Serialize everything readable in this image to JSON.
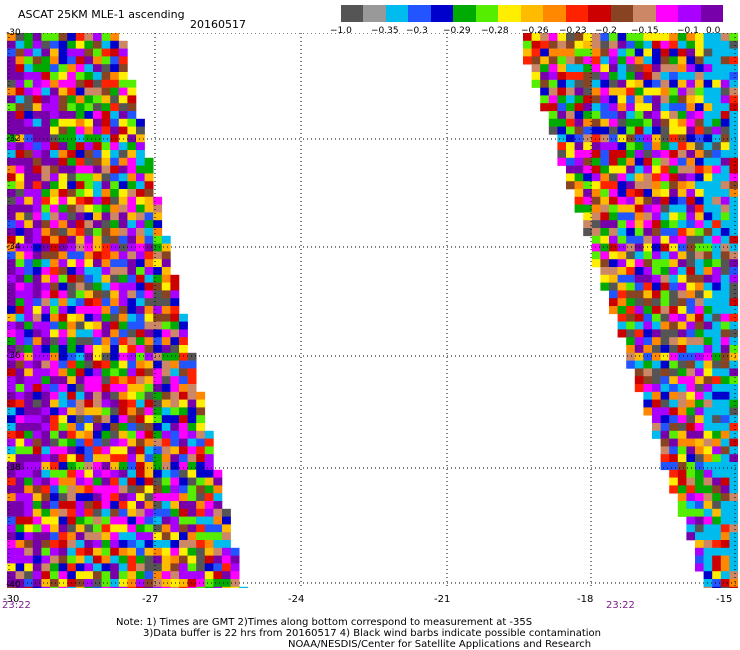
{
  "header": {
    "title": "ASCAT 25KM MLE-1 ascending",
    "date": "20160517"
  },
  "colorbar": {
    "colors": [
      "#555555",
      "#999999",
      "#00bbee",
      "#2255ff",
      "#0000cc",
      "#00aa00",
      "#55ee00",
      "#ffee00",
      "#ffbb00",
      "#ff8800",
      "#ff2200",
      "#cc0000",
      "#884422",
      "#cc8866",
      "#ff00ff",
      "#aa00ff",
      "#7700aa"
    ],
    "labels": [
      "−1.0",
      "−0.35",
      "−0.3",
      "−0.29",
      "−0.28",
      "−0.26",
      "−0.23",
      "−0.2",
      "−0.15",
      "−0.1",
      "0.0"
    ]
  },
  "map": {
    "lat_labels": [
      "-30",
      "-32",
      "-34",
      "-36",
      "-38",
      "-40"
    ],
    "lon_labels": [
      "-30",
      "-27",
      "-24",
      "-21",
      "-18",
      "-15"
    ],
    "time_labels": [
      "23:22",
      "23:22"
    ],
    "palette": [
      "#7700aa",
      "#aa00ff",
      "#ff00ff",
      "#ff2200",
      "#ff8800",
      "#ffbb00",
      "#ffee00",
      "#00bbee",
      "#2255ff",
      "#0000cc",
      "#00aa00",
      "#55ee00",
      "#884422",
      "#cc8866",
      "#cc0000",
      "#555555"
    ]
  },
  "notes": {
    "line1": "Note: 1) Times are GMT 2)Times along bottom correspond to measurement at -35S",
    "line2": "3)Data buffer is 22 hrs from 20160517 4) Black wind barbs indicate possible contamination",
    "line3": "NOAA/NESDIS/Center for Satellite Applications and Research"
  }
}
